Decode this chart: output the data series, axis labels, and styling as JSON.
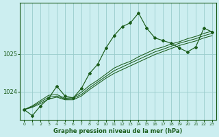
{
  "xlabel": "Graphe pression niveau de la mer (hPa)",
  "background_color": "#cceef0",
  "grid_color": "#99cccc",
  "line_color": "#1a5c1a",
  "xlim": [
    -0.5,
    23.5
  ],
  "ylim": [
    1023.25,
    1026.35
  ],
  "yticks": [
    1024,
    1025
  ],
  "xticks": [
    0,
    1,
    2,
    3,
    4,
    5,
    6,
    7,
    8,
    9,
    10,
    11,
    12,
    13,
    14,
    15,
    16,
    17,
    18,
    19,
    20,
    21,
    22,
    23
  ],
  "line_main": [
    1023.52,
    1023.36,
    1023.62,
    1023.82,
    1024.14,
    1023.88,
    1023.83,
    1024.08,
    1024.48,
    1024.72,
    1025.15,
    1025.48,
    1025.72,
    1025.82,
    1026.08,
    1025.68,
    1025.42,
    1025.35,
    1025.28,
    1025.15,
    1025.05,
    1025.18,
    1025.68,
    1025.58
  ],
  "line_a": [
    1023.52,
    1023.6,
    1023.72,
    1023.85,
    1023.88,
    1023.8,
    1023.82,
    1023.92,
    1024.1,
    1024.25,
    1024.4,
    1024.55,
    1024.65,
    1024.75,
    1024.85,
    1024.95,
    1025.05,
    1025.12,
    1025.2,
    1025.28,
    1025.34,
    1025.4,
    1025.48,
    1025.54
  ],
  "line_b": [
    1023.52,
    1023.58,
    1023.68,
    1023.8,
    1023.85,
    1023.78,
    1023.78,
    1023.88,
    1024.05,
    1024.2,
    1024.35,
    1024.48,
    1024.58,
    1024.68,
    1024.78,
    1024.88,
    1024.98,
    1025.06,
    1025.14,
    1025.22,
    1025.28,
    1025.34,
    1025.42,
    1025.48
  ],
  "line_c": [
    1023.52,
    1023.62,
    1023.76,
    1023.9,
    1023.92,
    1023.82,
    1023.84,
    1023.98,
    1024.16,
    1024.3,
    1024.46,
    1024.62,
    1024.72,
    1024.8,
    1024.92,
    1025.02,
    1025.12,
    1025.18,
    1025.26,
    1025.32,
    1025.4,
    1025.46,
    1025.54,
    1025.6
  ]
}
